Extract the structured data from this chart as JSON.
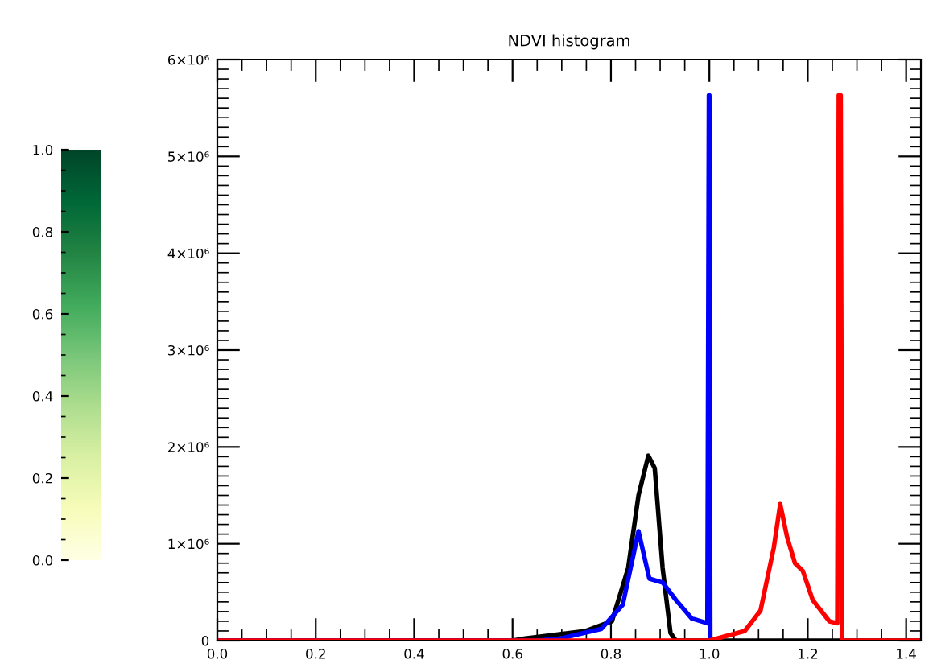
{
  "chart_data": {
    "type": "line",
    "title": "NDVI histogram",
    "series": [
      {
        "color": "#000000",
        "x": [
          0.0,
          0.6,
          0.623,
          0.749,
          0.802,
          0.835,
          0.856,
          0.876,
          0.889,
          0.905,
          0.921,
          0.932,
          1.43
        ],
        "values": [
          0,
          0,
          20000,
          100000,
          200000,
          750000,
          1500000,
          1910000,
          1780000,
          750000,
          80000,
          0,
          0
        ]
      },
      {
        "color": "#0000ff",
        "x": [
          0.0,
          0.65,
          0.695,
          0.78,
          0.824,
          0.856,
          0.878,
          0.905,
          0.932,
          0.964,
          0.996,
          0.999,
          1.0,
          1.002
        ],
        "values": [
          0,
          0,
          20000,
          120000,
          370000,
          1130000,
          640000,
          600000,
          420000,
          230000,
          180000,
          5630000,
          5630000,
          0
        ]
      },
      {
        "color": "#ff0000",
        "x": [
          0.0,
          0.72,
          1.0,
          1.072,
          1.104,
          1.131,
          1.144,
          1.158,
          1.174,
          1.19,
          1.21,
          1.244,
          1.26,
          1.263,
          1.267,
          1.27,
          1.43
        ],
        "values": [
          0,
          0,
          0,
          100000,
          310000,
          960000,
          1410000,
          1070000,
          800000,
          720000,
          420000,
          200000,
          180000,
          5630000,
          5630000,
          0,
          0
        ]
      }
    ],
    "xlim": [
      0,
      1.43
    ],
    "xticks": [
      {
        "value": 0,
        "label": "0.0"
      },
      0.2,
      0.4,
      0.6,
      0.8,
      {
        "value": 1,
        "label": "1.0"
      },
      1.2,
      1.4
    ],
    "ylim": [
      0,
      6000000
    ],
    "yticks": [
      0,
      {
        "value": 1000000,
        "label": "1×10⁶"
      },
      {
        "value": 2000000,
        "label": "2×10⁶"
      },
      {
        "value": 3000000,
        "label": "3×10⁶"
      },
      {
        "value": 4000000,
        "label": "4×10⁶"
      },
      {
        "value": 5000000,
        "label": "5×10⁶"
      },
      {
        "value": 6000000,
        "label": "6×10⁶"
      }
    ],
    "clim": [
      0,
      1
    ],
    "cticks": [
      {
        "value": 0,
        "label": "0.0"
      },
      0.2,
      0.4,
      0.6,
      0.8,
      {
        "value": 1,
        "label": "1.0"
      }
    ],
    "grid": false,
    "legend": false
  }
}
